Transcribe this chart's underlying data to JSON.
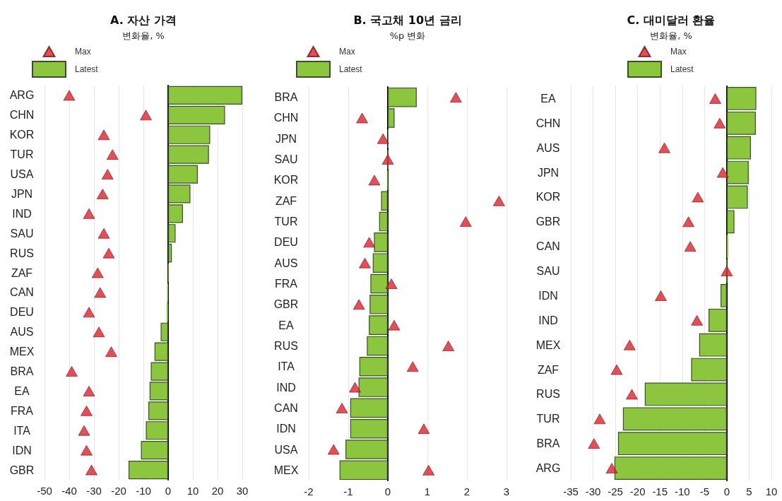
{
  "chart_data": [
    {
      "type": "bar",
      "orientation": "horizontal",
      "title": "A. 자산 가격",
      "subtitle": "변화율, %",
      "categories": [
        "ARG",
        "CHN",
        "KOR",
        "TUR",
        "USA",
        "JPN",
        "IND",
        "SAU",
        "RUS",
        "ZAF",
        "CAN",
        "DEU",
        "AUS",
        "MEX",
        "BRA",
        "EA",
        "FRA",
        "ITA",
        "IDN",
        "GBR"
      ],
      "series": [
        {
          "name": "Max",
          "type": "scatter",
          "color": "#d9232d",
          "values": [
            -40,
            -9,
            -26,
            -22.5,
            -24.5,
            -26.5,
            -32,
            -26,
            -24,
            -28.5,
            -27.5,
            -32,
            -28,
            -23,
            -39,
            -32,
            -33,
            -34,
            -33,
            -31
          ]
        },
        {
          "name": "Latest",
          "color": "#8cc63f",
          "values": [
            30,
            23,
            17,
            16.5,
            12,
            9,
            6,
            3,
            1.5,
            0.2,
            -0.4,
            -0.6,
            -3,
            -5.5,
            -7,
            -7.5,
            -8,
            -9,
            -11,
            -16
          ]
        }
      ],
      "xlim": [
        -50,
        30
      ],
      "xticks": [
        -50,
        -40,
        -30,
        -20,
        -10,
        0,
        10,
        20,
        30
      ],
      "grid": "x",
      "legend": "top left",
      "marker": "triangle"
    },
    {
      "type": "bar",
      "orientation": "horizontal",
      "title": "B. 국고채 10년 금리",
      "subtitle": "%p 변화",
      "categories": [
        "BRA",
        "CHN",
        "JPN",
        "SAU",
        "KOR",
        "ZAF",
        "TUR",
        "DEU",
        "AUS",
        "FRA",
        "GBR",
        "EA",
        "RUS",
        "ITA",
        "IND",
        "CAN",
        "IDN",
        "USA",
        "MEX"
      ],
      "series": [
        {
          "name": "Max",
          "type": "scatter",
          "color": "#d9232d",
          "values": [
            1.72,
            -0.65,
            -0.12,
            0,
            -0.34,
            2.81,
            1.97,
            -0.47,
            -0.58,
            0.09,
            -0.73,
            0.16,
            1.53,
            0.63,
            -0.83,
            -1.16,
            0.91,
            -1.37,
            1.03
          ]
        },
        {
          "name": "Latest",
          "color": "#8cc63f",
          "values": [
            0.73,
            0.17,
            0.01,
            0,
            -0.02,
            -0.17,
            -0.22,
            -0.35,
            -0.38,
            -0.44,
            -0.46,
            -0.48,
            -0.53,
            -0.72,
            -0.74,
            -0.95,
            -0.95,
            -1.07,
            -1.22
          ]
        }
      ],
      "xlim": [
        -2,
        3
      ],
      "xticks": [
        -2,
        -1,
        0,
        1,
        2,
        3
      ],
      "grid": "x",
      "legend": "top left",
      "marker": "triangle"
    },
    {
      "type": "bar",
      "orientation": "horizontal",
      "title": "C. 대미달러 환율",
      "subtitle": "변화율, %",
      "categories": [
        "EA",
        "CHN",
        "AUS",
        "JPN",
        "KOR",
        "GBR",
        "CAN",
        "SAU",
        "IDN",
        "IND",
        "MEX",
        "ZAF",
        "RUS",
        "TUR",
        "BRA",
        "ARG"
      ],
      "series": [
        {
          "name": "Max",
          "type": "scatter",
          "color": "#d9232d",
          "values": [
            -2.6,
            -1.6,
            -14,
            -0.9,
            -6.5,
            -8.6,
            -8.2,
            0,
            -14.8,
            -6.7,
            -21.8,
            -24.7,
            -21.3,
            -28.5,
            -29.8,
            -25.8
          ]
        },
        {
          "name": "Latest",
          "color": "#8cc63f",
          "values": [
            6.6,
            6.5,
            5.4,
            4.9,
            4.7,
            1.7,
            0.3,
            0,
            -1.4,
            -4.1,
            -6.2,
            -8,
            -18.4,
            -23.3,
            -24.4,
            -25.2
          ]
        }
      ],
      "xlim": [
        -35,
        10
      ],
      "xticks": [
        -35,
        -30,
        -25,
        -20,
        -15,
        -10,
        -5,
        0,
        5,
        10
      ],
      "grid": "x",
      "legend": "top",
      "marker": "triangle"
    }
  ]
}
